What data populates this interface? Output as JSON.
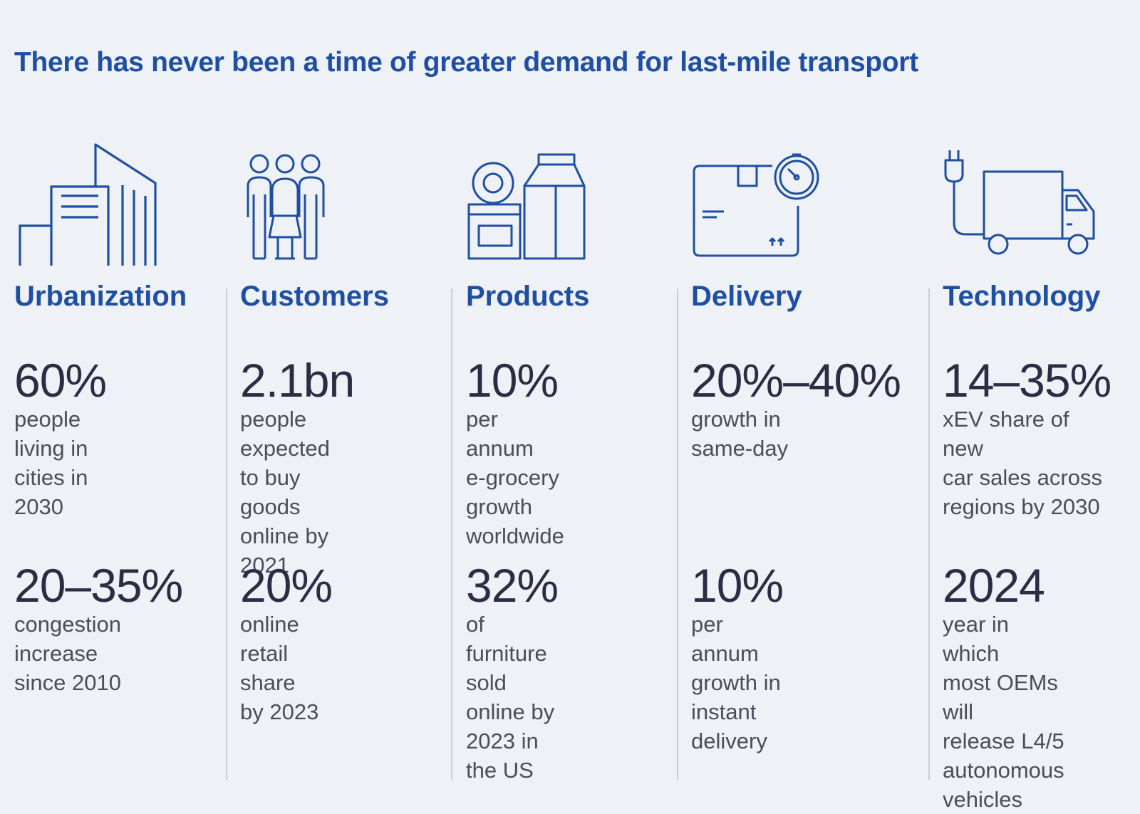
{
  "title": "There has never been a time of greater demand for last-mile transport",
  "colors": {
    "accent": "#1f4fa3",
    "value_text": "#2c2c44",
    "desc_text": "#4b4e5a",
    "background": "#eef1f5"
  },
  "columns": [
    {
      "icon": "buildings-icon",
      "heading": "Urbanization",
      "stats": [
        {
          "value": "60%",
          "description": "people living in\ncities in 2030"
        },
        {
          "value": "20–35%",
          "description": "congestion\nincrease\nsince 2010"
        }
      ]
    },
    {
      "icon": "people-icon",
      "heading": "Customers",
      "stats": [
        {
          "value": "2.1bn",
          "description": "people expected\nto buy goods\nonline by 2021"
        },
        {
          "value": "20%",
          "description": "online retail share\nby 2023"
        }
      ]
    },
    {
      "icon": "groceries-icon",
      "heading": "Products",
      "stats": [
        {
          "value": "10%",
          "description": "per annum\ne-grocery growth\nworldwide"
        },
        {
          "value": "32%",
          "description": "of furniture sold\nonline by 2023 in\nthe US"
        }
      ]
    },
    {
      "icon": "package-stopwatch-icon",
      "heading": "Delivery",
      "stats": [
        {
          "value": "20%–40%",
          "description": "growth in\nsame-day"
        },
        {
          "value": "10%",
          "description": "per annum\ngrowth in\ninstant delivery"
        }
      ]
    },
    {
      "icon": "electric-truck-icon",
      "heading": "Technology",
      "stats": [
        {
          "value": "14–35%",
          "description": "xEV share of new\ncar sales across\nregions by 2030"
        },
        {
          "value": "2024",
          "description": "year in which\nmost OEMs will\nrelease L4/5\nautonomous\nvehicles"
        }
      ]
    }
  ]
}
